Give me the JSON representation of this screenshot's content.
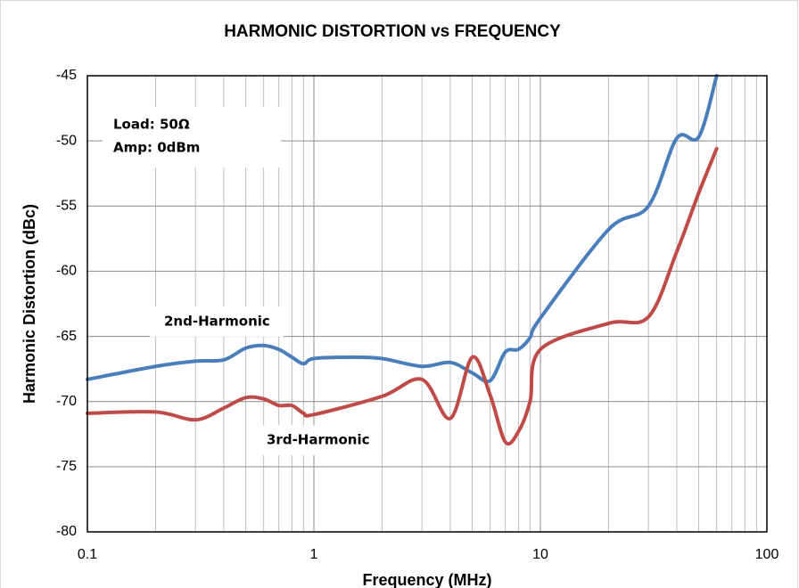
{
  "chart_data": {
    "type": "line",
    "title": "HARMONIC DISTORTION  vs  FREQUENCY",
    "x_label": "Frequency (MHz)",
    "y_label": "Harmonic Distortion (dBc)",
    "annotations": [
      "Load: 50Ω",
      "Amp: 0dBm",
      "2nd-Harmonic",
      "3rd-Harmonic"
    ],
    "x_scale": "log",
    "xlim": [
      0.1,
      100
    ],
    "xticks": [
      0.1,
      1,
      10,
      100
    ],
    "ylim": [
      -80,
      -45
    ],
    "yticks": [
      -45,
      -50,
      -55,
      -60,
      -65,
      -70,
      -75,
      -80
    ],
    "grid": true,
    "minor_grid": true,
    "smooth": true,
    "series": [
      {
        "name": "2nd-Harmonic",
        "color": "#4a7ebb",
        "x": [
          0.1,
          0.2,
          0.3,
          0.4,
          0.5,
          0.6,
          0.7,
          0.8,
          0.9,
          1,
          1.5,
          2,
          3,
          4,
          5,
          6,
          7,
          8,
          9,
          10,
          20,
          30,
          40,
          50,
          60
        ],
        "values": [
          -68.3,
          -67.3,
          -66.9,
          -66.8,
          -65.9,
          -65.7,
          -66.0,
          -66.6,
          -67.1,
          -66.7,
          -66.6,
          -66.7,
          -67.3,
          -67.0,
          -67.8,
          -68.4,
          -66.2,
          -66.0,
          -65.1,
          -63.6,
          -56.8,
          -55.0,
          -49.8,
          -49.7,
          -45.0
        ]
      },
      {
        "name": "3rd-Harmonic",
        "color": "#be4b48",
        "x": [
          0.1,
          0.2,
          0.3,
          0.4,
          0.5,
          0.6,
          0.7,
          0.8,
          0.9,
          1,
          2,
          3,
          4,
          5,
          6,
          7,
          8,
          9,
          10,
          20,
          30,
          40,
          50,
          60
        ],
        "values": [
          -70.9,
          -70.8,
          -71.4,
          -70.5,
          -69.7,
          -69.8,
          -70.3,
          -70.3,
          -70.9,
          -71.0,
          -69.6,
          -68.3,
          -71.3,
          -66.6,
          -69.5,
          -73.1,
          -72.3,
          -70.0,
          -66.0,
          -64.0,
          -63.5,
          -58.5,
          -54.0,
          -50.6
        ]
      }
    ]
  }
}
